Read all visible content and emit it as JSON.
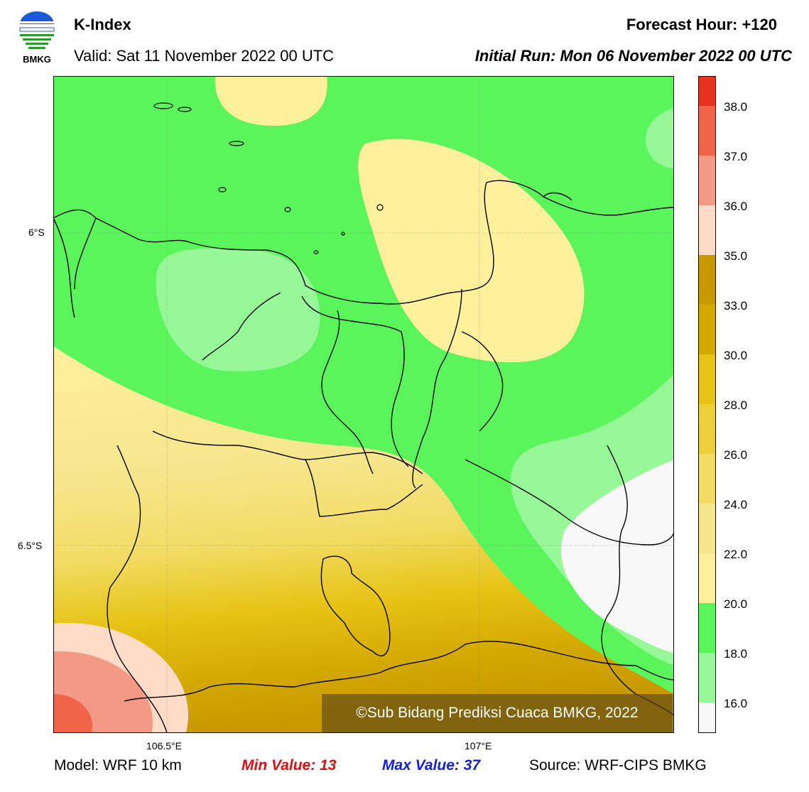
{
  "header": {
    "logo_text": "BMKG",
    "title": "K-Index",
    "valid": "Valid: Sat 11 November 2022 00 UTC",
    "forecast_hour": "Forecast Hour: +120",
    "initial_run": "Initial Run: Mon 06 November 2022 00 UTC"
  },
  "map": {
    "lat_labels": [
      "6°S",
      "6.5°S"
    ],
    "lon_labels": [
      "106.5°E",
      "107°E"
    ],
    "credit": "©Sub Bidang Prediksi Cuaca BMKG, 2022"
  },
  "colorbar": {
    "ticks": [
      "38.0",
      "37.0",
      "36.0",
      "35.0",
      "33.0",
      "30.0",
      "28.0",
      "26.0",
      "24.0",
      "22.0",
      "20.0",
      "18.0",
      "16.0"
    ],
    "colors": [
      "#e8321e",
      "#f0644a",
      "#f49a84",
      "#ffdcc8",
      "#c99a00",
      "#d4a900",
      "#e6c315",
      "#eccf3a",
      "#f2dc64",
      "#f6e68c",
      "#fff09c",
      "#5af55a",
      "#96f896",
      "#f8f8f8"
    ]
  },
  "footer": {
    "model": "Model: WRF 10 km",
    "min_value": "Min Value: 13",
    "max_value": "Max Value: 37",
    "source": "Source: WRF-CIPS BMKG"
  }
}
